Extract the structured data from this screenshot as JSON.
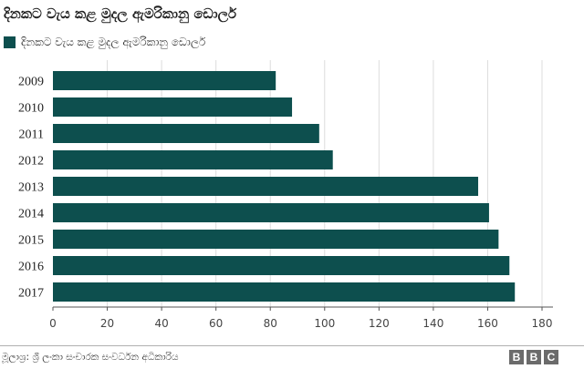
{
  "chart_data": {
    "type": "bar",
    "orientation": "horizontal",
    "title": "දිනකට වැය කළ මුදල ඇමරිකානු ඩොලර්",
    "categories": [
      "2009",
      "2010",
      "2011",
      "2012",
      "2013",
      "2014",
      "2015",
      "2016",
      "2017"
    ],
    "series": [
      {
        "name": "දිනකට වැය කළ මුදල ඇමරිකානු ඩොලර්",
        "values": [
          82,
          88,
          98,
          103,
          156.5,
          160.5,
          164,
          168,
          170
        ]
      }
    ],
    "xlim": [
      0,
      180
    ],
    "xticks": [
      0,
      20,
      40,
      60,
      80,
      100,
      120,
      140,
      160,
      180
    ],
    "grid": true,
    "legend": "top-left",
    "xlabel": "",
    "ylabel": ""
  },
  "colors": {
    "bar": "#0d4f4e",
    "grid": "#dcdcdc",
    "axis": "#555555"
  },
  "footer": {
    "source": "මූලාශ්‍ර: ශ්‍රී ලංකා සංචාරක සංවර්ධන අධිකාරිය",
    "logo_letters": [
      "B",
      "B",
      "C"
    ]
  }
}
